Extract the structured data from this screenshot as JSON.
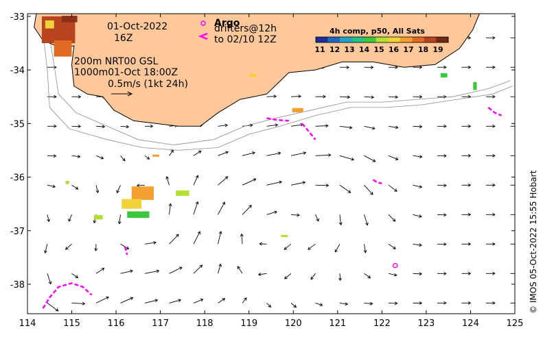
{
  "header": {
    "date": "01-Oct-2022",
    "hour": "16Z"
  },
  "argo": {
    "label": "Argo",
    "drifters_line1": "drifters@12h",
    "drifters_line2": "to 02/10 12Z"
  },
  "depth_info": {
    "line1": "200m  NRT00 GSL",
    "line2": "1000m01-Oct 18:00Z",
    "scale_label": "0.5m/s (1kt 24h)"
  },
  "legend": {
    "title": "4h comp, p50, All Sats",
    "ticks": [
      "11",
      "12",
      "13",
      "14",
      "15",
      "16",
      "17",
      "18",
      "19"
    ],
    "colors": [
      "#1a2e9a",
      "#1f66c8",
      "#1fa5c8",
      "#1fc28a",
      "#3cc83c",
      "#b0e030",
      "#f2d23a",
      "#f2a030",
      "#e06a22",
      "#b8441e",
      "#6e2a14"
    ]
  },
  "credit": "© IMOS 05-Oct-2022 15:55 Hobart",
  "chart_data": {
    "type": "map",
    "x_ticks": [
      "114",
      "115",
      "116",
      "117",
      "118",
      "119",
      "120",
      "121",
      "122",
      "123",
      "124",
      "125"
    ],
    "y_ticks": [
      "-33",
      "-34",
      "-35",
      "-36",
      "-37",
      "-38"
    ],
    "xlim": [
      114,
      125
    ],
    "ylim": [
      -38.55,
      -32.95
    ],
    "colors": {
      "land": "#ffc89a",
      "frame": "#000000",
      "isobath": "#8c8c8c",
      "drifter": "#ff00ff",
      "arrow": "#000000"
    },
    "coast": [
      [
        114.2,
        -32.95
      ],
      [
        114.15,
        -33.2
      ],
      [
        114.35,
        -33.45
      ],
      [
        114.8,
        -33.6
      ],
      [
        115.05,
        -33.55
      ],
      [
        115.0,
        -33.9
      ],
      [
        115.05,
        -34.3
      ],
      [
        115.35,
        -34.45
      ],
      [
        115.7,
        -34.5
      ],
      [
        115.95,
        -34.75
      ],
      [
        116.4,
        -34.95
      ],
      [
        116.9,
        -35.0
      ],
      [
        117.4,
        -35.05
      ],
      [
        117.9,
        -35.05
      ],
      [
        118.3,
        -34.8
      ],
      [
        118.8,
        -34.55
      ],
      [
        119.4,
        -34.45
      ],
      [
        119.9,
        -34.05
      ],
      [
        120.5,
        -34.0
      ],
      [
        121.1,
        -33.85
      ],
      [
        121.8,
        -33.85
      ],
      [
        122.5,
        -33.95
      ],
      [
        123.2,
        -33.9
      ],
      [
        123.75,
        -33.6
      ],
      [
        124.05,
        -33.25
      ],
      [
        124.2,
        -32.95
      ]
    ],
    "isobath_200": [
      [
        114.5,
        -33.4
      ],
      [
        114.6,
        -33.9
      ],
      [
        114.7,
        -34.45
      ],
      [
        115.1,
        -34.8
      ],
      [
        115.8,
        -35.05
      ],
      [
        116.5,
        -35.3
      ],
      [
        117.3,
        -35.4
      ],
      [
        118.2,
        -35.3
      ],
      [
        118.9,
        -35.05
      ],
      [
        119.6,
        -34.9
      ],
      [
        120.4,
        -34.75
      ],
      [
        121.2,
        -34.6
      ],
      [
        122.0,
        -34.6
      ],
      [
        122.8,
        -34.55
      ],
      [
        123.6,
        -34.5
      ],
      [
        124.4,
        -34.35
      ],
      [
        124.9,
        -34.2
      ]
    ],
    "isobath_1000": [
      [
        114.35,
        -33.3
      ],
      [
        114.45,
        -34.0
      ],
      [
        114.5,
        -34.7
      ],
      [
        114.95,
        -35.1
      ],
      [
        115.8,
        -35.3
      ],
      [
        116.6,
        -35.45
      ],
      [
        117.4,
        -35.5
      ],
      [
        118.3,
        -35.45
      ],
      [
        119.0,
        -35.2
      ],
      [
        119.7,
        -35.05
      ],
      [
        120.5,
        -34.85
      ],
      [
        121.3,
        -34.7
      ],
      [
        122.1,
        -34.7
      ],
      [
        122.9,
        -34.65
      ],
      [
        123.7,
        -34.55
      ],
      [
        124.5,
        -34.45
      ],
      [
        124.95,
        -34.3
      ]
    ],
    "sst_patches": [
      {
        "lon": 114.7,
        "lat": -33.25,
        "w": 0.75,
        "h": 0.5,
        "color": "#b8441e"
      },
      {
        "lon": 114.8,
        "lat": -33.6,
        "w": 0.4,
        "h": 0.3,
        "color": "#e06a22"
      },
      {
        "lon": 114.5,
        "lat": -33.15,
        "w": 0.2,
        "h": 0.15,
        "color": "#f2d23a"
      },
      {
        "lon": 114.95,
        "lat": -33.05,
        "w": 0.35,
        "h": 0.12,
        "color": "#8a3018"
      },
      {
        "lon": 116.6,
        "lat": -36.3,
        "w": 0.5,
        "h": 0.25,
        "color": "#f2a030"
      },
      {
        "lon": 116.35,
        "lat": -36.5,
        "w": 0.45,
        "h": 0.18,
        "color": "#f2d23a"
      },
      {
        "lon": 116.5,
        "lat": -36.7,
        "w": 0.5,
        "h": 0.12,
        "color": "#3cc83c"
      },
      {
        "lon": 117.5,
        "lat": -36.3,
        "w": 0.3,
        "h": 0.1,
        "color": "#b0e030"
      },
      {
        "lon": 115.6,
        "lat": -36.75,
        "w": 0.2,
        "h": 0.08,
        "color": "#b0e030"
      },
      {
        "lon": 120.1,
        "lat": -34.75,
        "w": 0.25,
        "h": 0.08,
        "color": "#f2a030"
      },
      {
        "lon": 119.1,
        "lat": -34.1,
        "w": 0.15,
        "h": 0.06,
        "color": "#f2d23a"
      },
      {
        "lon": 123.4,
        "lat": -34.1,
        "w": 0.15,
        "h": 0.08,
        "color": "#3cc83c"
      },
      {
        "lon": 124.1,
        "lat": -34.3,
        "w": 0.08,
        "h": 0.15,
        "color": "#3cc83c"
      },
      {
        "lon": 114.9,
        "lat": -36.1,
        "w": 0.08,
        "h": 0.06,
        "color": "#b0e030"
      },
      {
        "lon": 116.9,
        "lat": -35.6,
        "w": 0.15,
        "h": 0.04,
        "color": "#f2a030"
      },
      {
        "lon": 119.8,
        "lat": -37.1,
        "w": 0.15,
        "h": 0.04,
        "color": "#b0e030"
      }
    ],
    "drifter_tracks": [
      [
        [
          119.4,
          -34.9
        ],
        [
          119.6,
          -34.93
        ],
        [
          119.9,
          -34.95
        ]
      ],
      [
        [
          120.2,
          -35.0
        ],
        [
          120.35,
          -35.15
        ],
        [
          120.5,
          -35.3
        ]
      ],
      [
        [
          124.4,
          -34.7
        ],
        [
          124.55,
          -34.8
        ],
        [
          124.7,
          -34.85
        ]
      ],
      [
        [
          121.8,
          -36.05
        ],
        [
          121.9,
          -36.1
        ],
        [
          122.0,
          -36.12
        ]
      ],
      [
        [
          114.35,
          -38.45
        ],
        [
          114.5,
          -38.25
        ],
        [
          114.7,
          -38.05
        ],
        [
          115.0,
          -37.98
        ],
        [
          115.25,
          -38.05
        ],
        [
          115.45,
          -38.2
        ]
      ],
      [
        [
          116.2,
          -37.3
        ],
        [
          116.25,
          -37.45
        ]
      ]
    ],
    "argo_floats": [
      [
        122.3,
        -37.65
      ]
    ]
  }
}
